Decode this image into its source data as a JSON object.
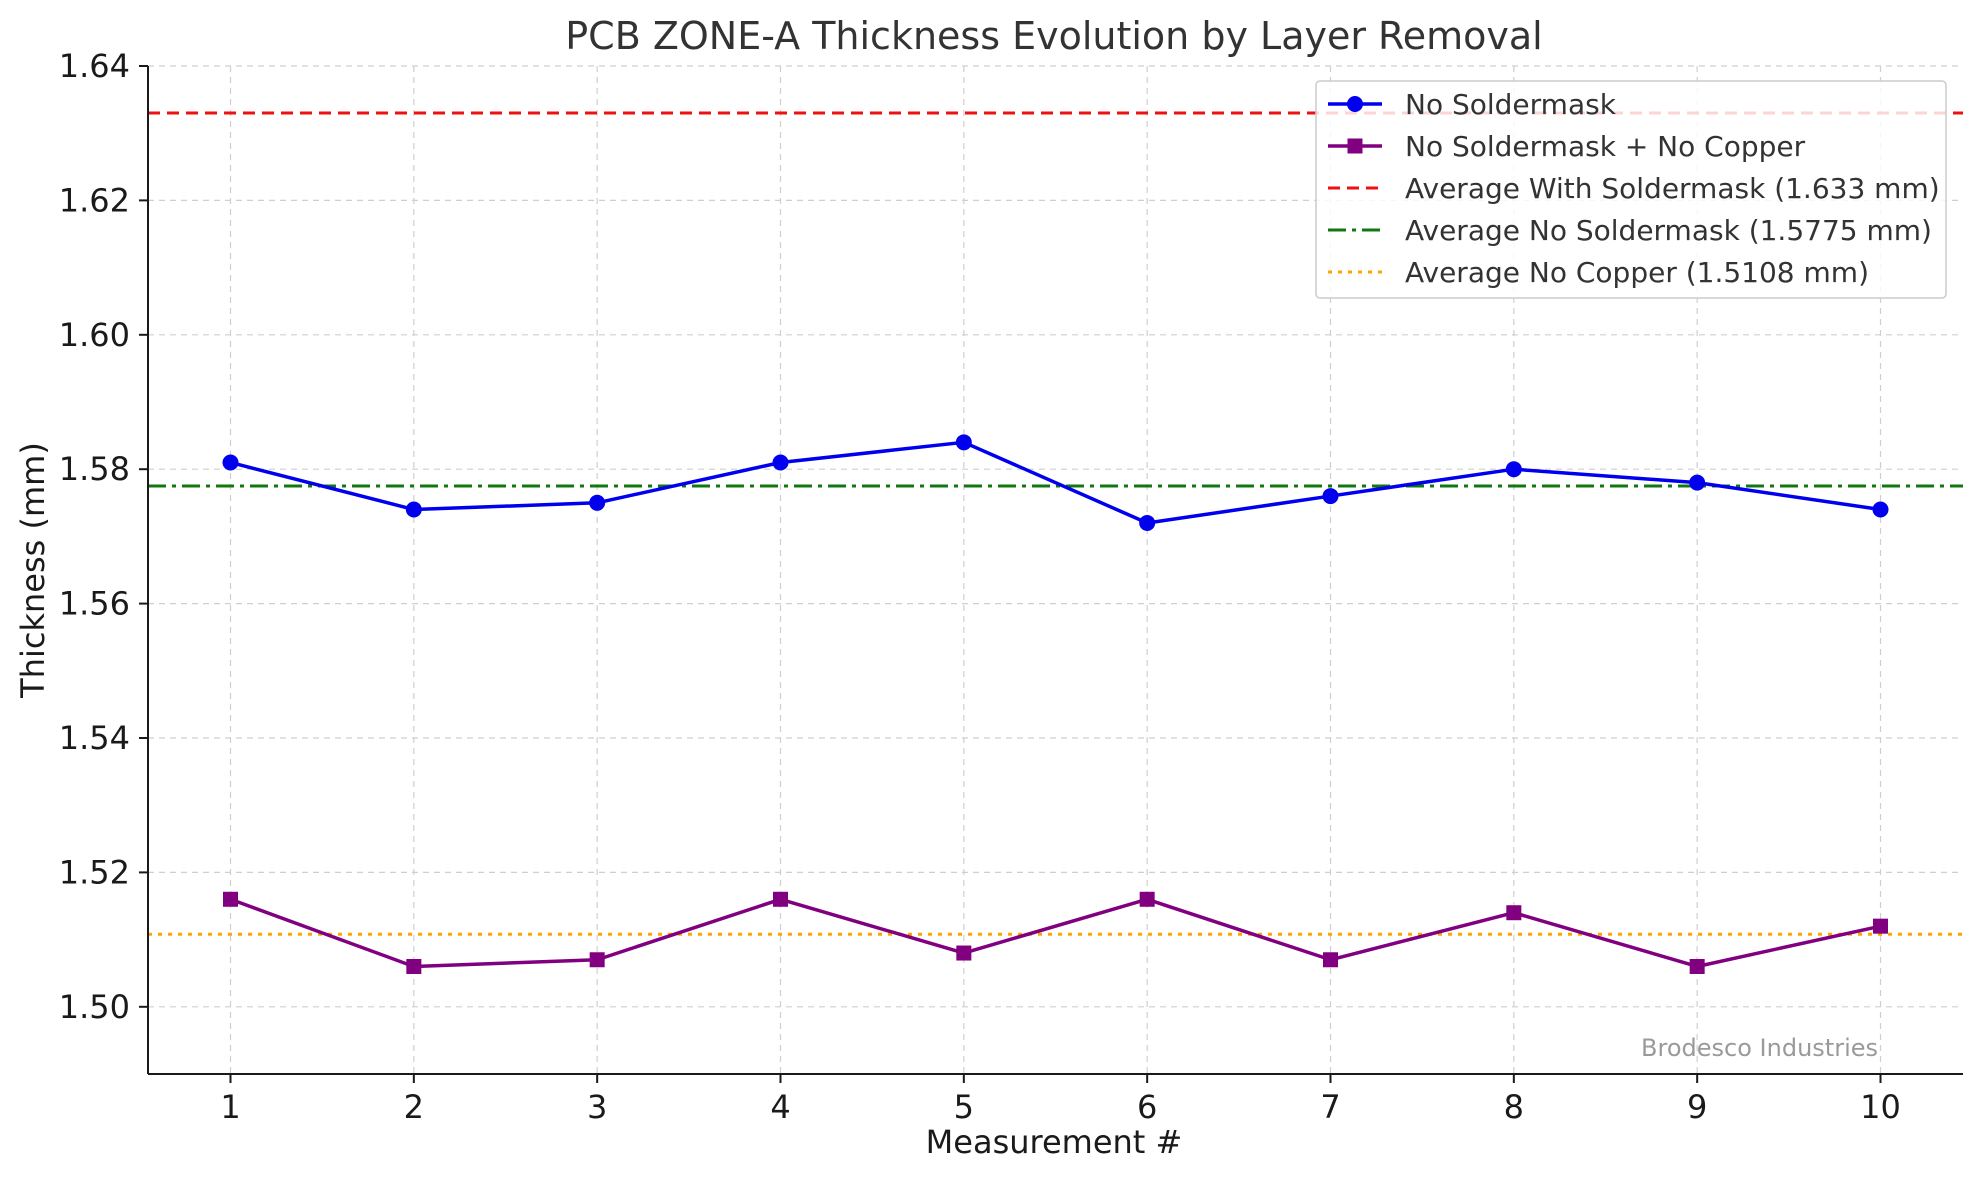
{
  "chart_data": {
    "type": "line",
    "title": "PCB ZONE-A Thickness Evolution by Layer Removal",
    "xlabel": "Measurement #",
    "ylabel": "Thickness (mm)",
    "x": [
      1,
      2,
      3,
      4,
      5,
      6,
      7,
      8,
      9,
      10
    ],
    "xlim": [
      0.55,
      10.45
    ],
    "ylim": [
      1.49,
      1.64
    ],
    "yticks": [
      1.5,
      1.52,
      1.54,
      1.56,
      1.58,
      1.6,
      1.62,
      1.64
    ],
    "ytick_labels": [
      "1.50",
      "1.52",
      "1.54",
      "1.56",
      "1.58",
      "1.60",
      "1.62",
      "1.64"
    ],
    "xtick_labels": [
      "1",
      "2",
      "3",
      "4",
      "5",
      "6",
      "7",
      "8",
      "9",
      "10"
    ],
    "grid": true,
    "legend_position": "top-right",
    "series": [
      {
        "name": "No Soldermask",
        "color": "#0000ee",
        "marker": "circle",
        "values": [
          1.581,
          1.574,
          1.575,
          1.581,
          1.584,
          1.572,
          1.576,
          1.58,
          1.578,
          1.574
        ]
      },
      {
        "name": "No Soldermask + No Copper",
        "color": "#800080",
        "marker": "square",
        "values": [
          1.516,
          1.506,
          1.507,
          1.516,
          1.508,
          1.516,
          1.507,
          1.514,
          1.506,
          1.512
        ]
      }
    ],
    "reference_lines": [
      {
        "name": "Average With Soldermask (1.633 mm)",
        "value": 1.633,
        "color": "#ee1111",
        "style": "dashed"
      },
      {
        "name": "Average No Soldermask (1.5775 mm)",
        "value": 1.5775,
        "color": "#117711",
        "style": "dashdot"
      },
      {
        "name": "Average No Copper (1.5108 mm)",
        "value": 1.5108,
        "color": "#ffa500",
        "style": "dotted"
      }
    ],
    "watermark": "Brodesco Industries"
  }
}
